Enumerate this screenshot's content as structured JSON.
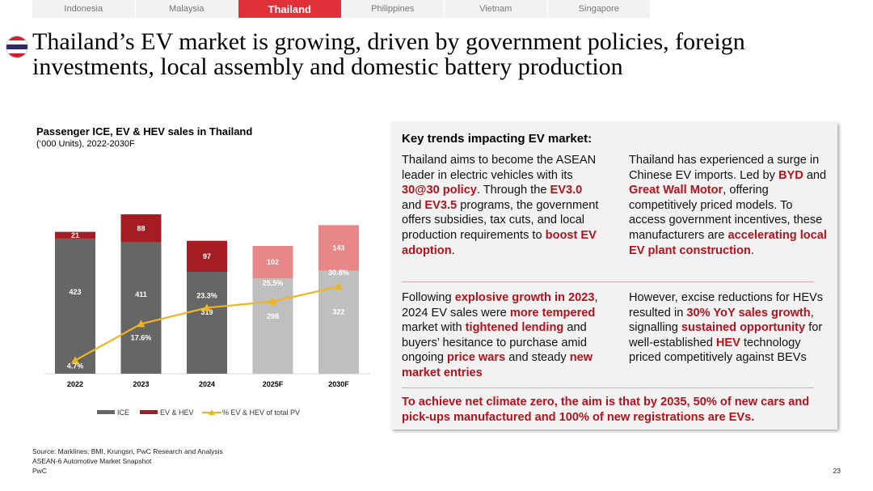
{
  "tabs": [
    "Indonesia",
    "Malaysia",
    "Thailand",
    "Philippines",
    "Vietnam",
    "Singapore"
  ],
  "active_tab": "Thailand",
  "title": "Thailand’s EV market is growing, driven by government policies, foreign investments, local assembly and domestic battery production",
  "colors": {
    "accent": "#e0303a",
    "ice": "#666666",
    "ev_hev": "#a51c22",
    "forecast_ice": "#bfbfbf",
    "forecast_ev": "#e88787",
    "line": "#f0b51e"
  },
  "chart_data": {
    "type": "bar",
    "title": "Passenger ICE, EV & HEV sales in Thailand",
    "subtitle": "(‘000 Units), 2022-2030F",
    "categories": [
      "2022",
      "2023",
      "2024",
      "2025F",
      "2030F"
    ],
    "series": [
      {
        "name": "ICE",
        "values": [
          423,
          411,
          319,
          298,
          322
        ]
      },
      {
        "name": "EV & HEV",
        "values": [
          21,
          88,
          97,
          102,
          143
        ]
      }
    ],
    "line_series": {
      "name": "% EV & HEV of total PV",
      "values": [
        4.7,
        17.6,
        23.3,
        25.5,
        30.8
      ],
      "labels": [
        "4.7%",
        "17.6%",
        "23.3%",
        "25.5%",
        "30.8%"
      ]
    },
    "forecast_categories": [
      "2025F",
      "2030F"
    ],
    "legend": [
      "ICE",
      "EV & HEV",
      "% EV & HEV of total PV"
    ],
    "legend_position": "bottom"
  },
  "box": {
    "title": "Key trends impacting EV market:",
    "p1": [
      {
        "t": "Thailand aims to become the ASEAN leader in electric vehicles with its "
      },
      {
        "t": "30@30 policy",
        "h": true
      },
      {
        "t": ". Through the "
      },
      {
        "t": "EV3.0",
        "h": true
      },
      {
        "t": " and "
      },
      {
        "t": "EV3.5",
        "h": true
      },
      {
        "t": " programs, the government offers subsidies, tax cuts, and local production requirements to "
      },
      {
        "t": "boost EV adoption",
        "h": true
      },
      {
        "t": "."
      }
    ],
    "p2": [
      {
        "t": "Thailand has experienced a surge in Chinese EV imports. Led by "
      },
      {
        "t": "BYD",
        "h": true
      },
      {
        "t": " and "
      },
      {
        "t": "Great Wall Motor",
        "h": true
      },
      {
        "t": ", offering competitively priced models. To access government incentives, these manufacturers are "
      },
      {
        "t": "accelerating local EV plant construction",
        "h": true
      },
      {
        "t": "."
      }
    ],
    "p3": [
      {
        "t": "Following "
      },
      {
        "t": "explosive growth in 2023",
        "h": true
      },
      {
        "t": ", 2024 EV sales were "
      },
      {
        "t": "more tempered",
        "h": true
      },
      {
        "t": " market with "
      },
      {
        "t": "tightened lending",
        "h": true
      },
      {
        "t": " and buyers’ hesitance to purchase amid ongoing "
      },
      {
        "t": "price wars",
        "h": true
      },
      {
        "t": " and steady "
      },
      {
        "t": "new market entries",
        "h": true
      }
    ],
    "p4": [
      {
        "t": "However, excise reductions for HEVs resulted in "
      },
      {
        "t": "30% YoY sales growth",
        "h": true
      },
      {
        "t": ", signalling "
      },
      {
        "t": "sustained opportunity",
        "h": true
      },
      {
        "t": " for well-established "
      },
      {
        "t": "HEV",
        "h": true
      },
      {
        "t": " technology priced competitively against BEVs"
      }
    ],
    "conclusion": "To achieve net climate zero, the aim is that by 2035, 50% of new cars and pick-ups manufactured and 100% of new registrations are EVs."
  },
  "footer": {
    "source": "Source: Marklines, BMI, Krungsri, PwC Research and Analysis",
    "doc": "ASEAN-6 Automotive Market Snapshot",
    "company": "PwC",
    "page": "23"
  }
}
